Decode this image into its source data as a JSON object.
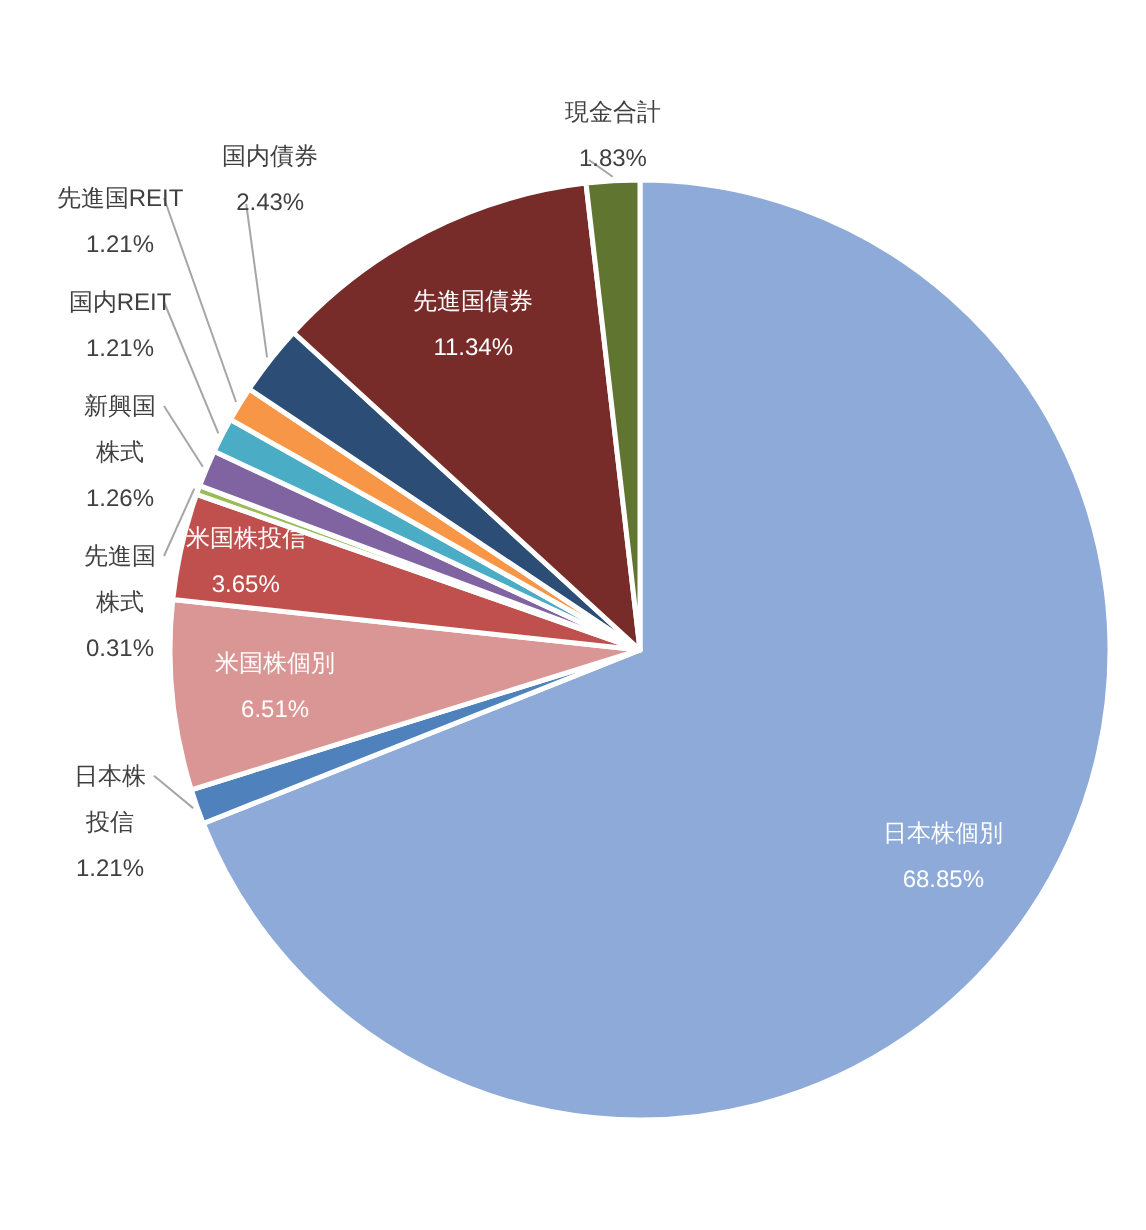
{
  "chart_data": {
    "type": "pie",
    "categories": [
      "日本株個別",
      "日本株投信",
      "米国株個別",
      "米国株投信",
      "先進国株式",
      "新興国株式",
      "国内REIT",
      "先進国REIT",
      "国内債券",
      "先進国債券",
      "現金合計"
    ],
    "values": [
      68.85,
      1.21,
      6.51,
      3.65,
      0.31,
      1.26,
      1.21,
      1.21,
      2.43,
      11.34,
      1.83
    ],
    "colors": [
      "#8eaad8",
      "#4f81bd",
      "#da9694",
      "#c0504d",
      "#9bbb59",
      "#8064a2",
      "#4bacc6",
      "#f79646",
      "#2c4d75",
      "#772c2a",
      "#5f7530"
    ],
    "value_labels": [
      "68.85%",
      "1.21%",
      "6.51%",
      "3.65%",
      "0.31%",
      "1.26%",
      "1.21%",
      "1.21%",
      "2.43%",
      "11.34%",
      "1.83%"
    ],
    "legend": false
  }
}
